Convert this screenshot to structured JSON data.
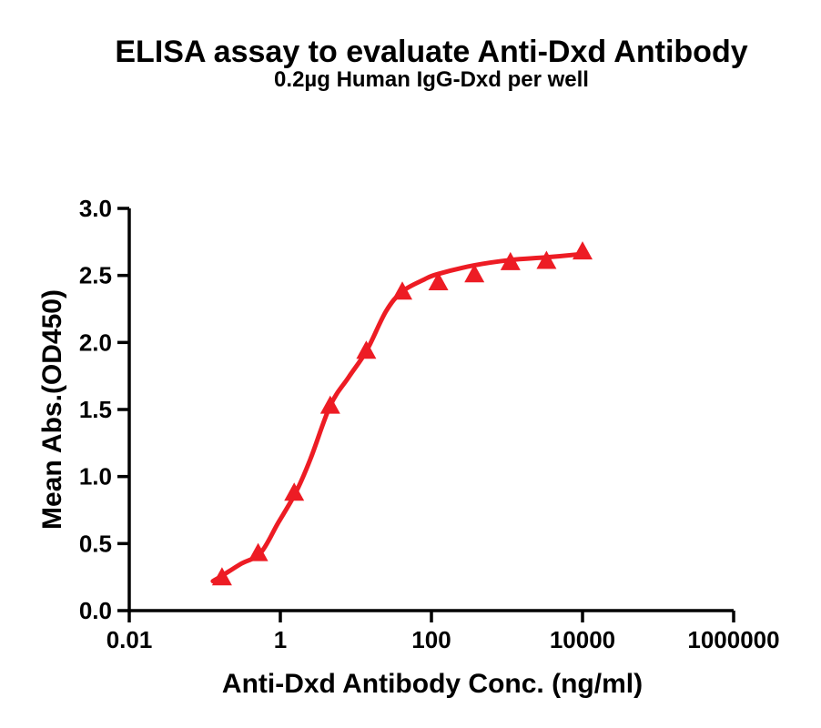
{
  "chart_data": {
    "type": "line",
    "title": "ELISA assay to evaluate Anti-Dxd Antibody",
    "subtitle": "0.2µg Human IgG-Dxd per well",
    "xlabel": "Anti-Dxd Antibody Conc. (ng/ml)",
    "ylabel": "Mean Abs.(OD450)",
    "x_scale": "log10",
    "xlim": [
      0.01,
      1000000
    ],
    "ylim": [
      0.0,
      3.0
    ],
    "grid": false,
    "legend": "none",
    "x_ticks": [
      {
        "value": 0.01,
        "label": "0.01"
      },
      {
        "value": 1,
        "label": "1"
      },
      {
        "value": 100,
        "label": "100"
      },
      {
        "value": 10000,
        "label": "10000"
      },
      {
        "value": 1000000,
        "label": "1000000"
      }
    ],
    "y_ticks": [
      {
        "value": 0.0,
        "label": "0.0"
      },
      {
        "value": 0.5,
        "label": "0.5"
      },
      {
        "value": 1.0,
        "label": "1.0"
      },
      {
        "value": 1.5,
        "label": "1.5"
      },
      {
        "value": 2.0,
        "label": "2.0"
      },
      {
        "value": 2.5,
        "label": "2.5"
      },
      {
        "value": 3.0,
        "label": "3.0"
      }
    ],
    "series": [
      {
        "name": "Anti-Dxd Antibody",
        "marker": "triangle-up",
        "color": "#ED1C24",
        "points": [
          {
            "x": 0.169,
            "y": 0.25
          },
          {
            "x": 0.508,
            "y": 0.43
          },
          {
            "x": 1.524,
            "y": 0.88
          },
          {
            "x": 4.572,
            "y": 1.53
          },
          {
            "x": 13.72,
            "y": 1.94
          },
          {
            "x": 41.15,
            "y": 2.38
          },
          {
            "x": 123.5,
            "y": 2.45
          },
          {
            "x": 370.4,
            "y": 2.51
          },
          {
            "x": 1111,
            "y": 2.6
          },
          {
            "x": 3333,
            "y": 2.61
          },
          {
            "x": 10000,
            "y": 2.68
          }
        ]
      }
    ],
    "fit_curve": {
      "name": "4PL fit",
      "color": "#ED1C24",
      "points": [
        [
          0.128,
          0.22
        ],
        [
          0.169,
          0.26
        ],
        [
          0.304,
          0.35
        ],
        [
          0.547,
          0.43
        ],
        [
          0.926,
          0.65
        ],
        [
          1.6,
          0.88
        ],
        [
          2.5,
          1.13
        ],
        [
          4.59,
          1.53
        ],
        [
          8.0,
          1.74
        ],
        [
          13.9,
          1.94
        ],
        [
          24.9,
          2.23
        ],
        [
          41.1,
          2.38
        ],
        [
          80.3,
          2.47
        ],
        [
          121,
          2.51
        ],
        [
          367,
          2.575
        ],
        [
          1117,
          2.615
        ],
        [
          3309,
          2.635
        ],
        [
          10000,
          2.66
        ]
      ]
    },
    "colors": {
      "series": "#ED1C24",
      "axis": "#000000",
      "text": "#000000",
      "background": "#FFFFFF"
    }
  }
}
